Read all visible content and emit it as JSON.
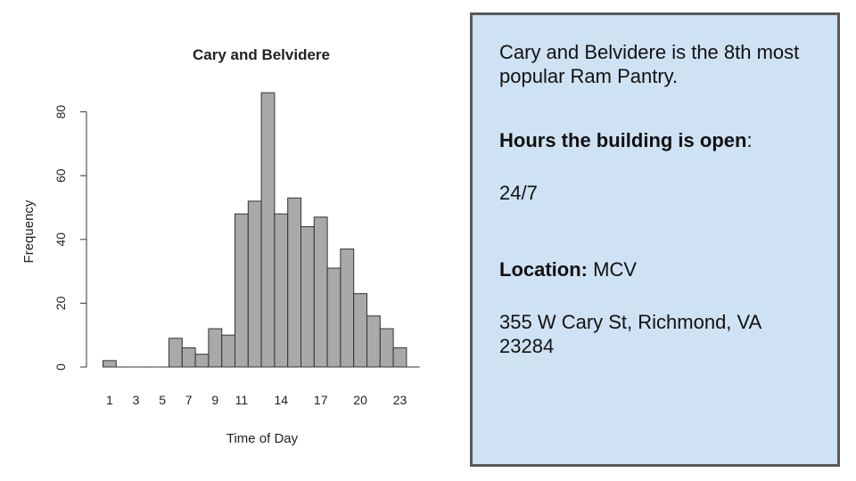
{
  "chart_data": {
    "type": "bar",
    "title": "Cary and Belvidere",
    "xlabel": "Time of Day",
    "ylabel": "Frequency",
    "ylim": [
      0,
      90
    ],
    "y_ticks": [
      0,
      20,
      40,
      60,
      80
    ],
    "x_tick_labels": [
      "1",
      "3",
      "5",
      "7",
      "9",
      "11",
      "14",
      "17",
      "20",
      "23"
    ],
    "x_tick_hours": [
      1,
      3,
      5,
      7,
      9,
      11,
      14,
      17,
      20,
      23
    ],
    "hours": [
      1,
      2,
      3,
      4,
      5,
      6,
      7,
      8,
      9,
      10,
      11,
      12,
      13,
      14,
      15,
      16,
      17,
      18,
      19,
      20,
      21,
      22,
      23,
      24
    ],
    "values": [
      2,
      0,
      0,
      0,
      0,
      9,
      6,
      4,
      12,
      10,
      48,
      52,
      86,
      48,
      53,
      44,
      47,
      31,
      37,
      23,
      16,
      12,
      6,
      0
    ],
    "bar_fill": "#a9a9a9",
    "bar_stroke": "#333333",
    "grid": false
  },
  "info": {
    "rank_sentence": "Cary and Belvidere is the 8th most popular Ram Pantry.",
    "hours_label": "Hours the building is open",
    "hours_colon": ":",
    "hours_value": "24/7",
    "location_label": "Location:",
    "location_value": " MCV",
    "address": "355 W Cary St, Richmond, VA 23284"
  },
  "colors": {
    "panel_bg": "#cfe2f3",
    "panel_border": "#595959"
  }
}
